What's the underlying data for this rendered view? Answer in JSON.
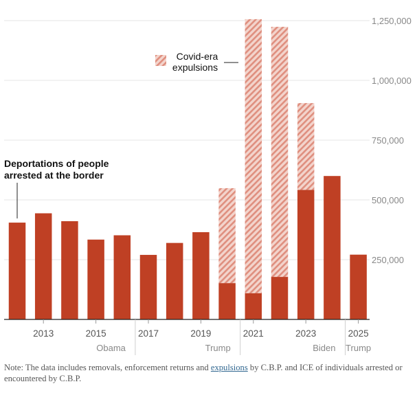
{
  "colors": {
    "deportation": "#bf4024",
    "expulsion_fill": "#f3d4cc",
    "expulsion_hatch": "#df8f7f",
    "grid": "#e6e6e6",
    "axis_text": "#888888",
    "annotation_text": "#111111",
    "note_link": "#326891"
  },
  "chart_data": {
    "type": "bar",
    "stacked": true,
    "categories": [
      2012,
      2013,
      2014,
      2015,
      2016,
      2017,
      2018,
      2019,
      2020,
      2021,
      2022,
      2023,
      2024,
      2025
    ],
    "series": [
      {
        "name": "Deportations of people arrested at the border",
        "style": "solid",
        "values": [
          405000,
          444000,
          411000,
          334000,
          352000,
          270000,
          320000,
          365000,
          152000,
          110000,
          178000,
          542000,
          600000,
          271000
        ]
      },
      {
        "name": "Covid-era expulsions",
        "style": "hatched",
        "values": [
          0,
          0,
          0,
          0,
          0,
          0,
          0,
          0,
          397000,
          1146000,
          1046000,
          363000,
          0,
          0
        ]
      }
    ],
    "x_tick_labels": [
      "2013",
      "2015",
      "2017",
      "2019",
      "2021",
      "2023",
      "2025"
    ],
    "y_tick_labels": [
      "250,000",
      "500,000",
      "750,000",
      "1,000,000",
      "1,250,000"
    ],
    "ylim": [
      0,
      1250000
    ],
    "grid": true,
    "y_axis_position": "right",
    "administrations": [
      {
        "label": "Obama",
        "from": 2012,
        "to": 2016
      },
      {
        "label": "Trump",
        "from": 2017,
        "to": 2020
      },
      {
        "label": "Biden",
        "from": 2021,
        "to": 2024
      },
      {
        "label": "Trump",
        "from": 2025,
        "to": 2025
      }
    ],
    "annotations": {
      "deportations_line1": "Deportations of people",
      "deportations_line2": "arrested at the border",
      "expulsions_line1": "Covid-era",
      "expulsions_line2": "expulsions"
    }
  },
  "note": {
    "prefix": "Note: The data includes removals, enforcement returns and ",
    "link": "expulsions",
    "suffix": " by C.B.P. and ICE of individuals arrested or encountered by C.B.P."
  }
}
